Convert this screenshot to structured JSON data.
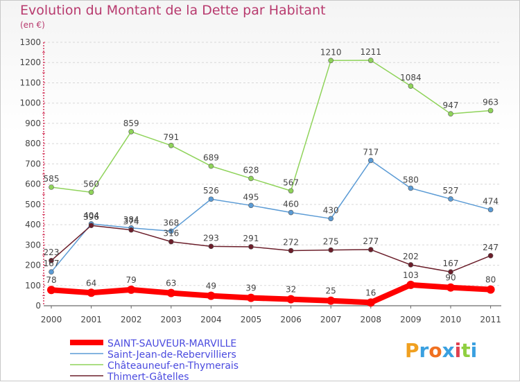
{
  "title": "Evolution du Montant de la Dette par Habitant",
  "subtitle": "(en €)",
  "logo": "Proxiti",
  "colors": {
    "title": "#b83a6e",
    "legend_text": "#4a4adf",
    "axis": "#d4345a",
    "grid": "#d8d8d8"
  },
  "chart_data": {
    "type": "line",
    "x": [
      "2000",
      "2001",
      "2002",
      "2003",
      "2004",
      "2005",
      "2006",
      "2007",
      "2008",
      "2009",
      "2010",
      "2011"
    ],
    "ylim": [
      0,
      1300
    ],
    "yticks": [
      0,
      100,
      200,
      300,
      400,
      500,
      600,
      700,
      800,
      900,
      1000,
      1100,
      1200,
      1300
    ],
    "grid": "horizontal dashed",
    "legend_position": "bottom-left",
    "series": [
      {
        "name": "SAINT-SAUVEUR-MARVILLE",
        "color": "#ff0000",
        "values": [
          78,
          64,
          79,
          63,
          49,
          39,
          32,
          25,
          16,
          103,
          90,
          80
        ]
      },
      {
        "name": "Saint-Jean-de-Rebervilliers",
        "color": "#5b9bd5",
        "values": [
          167,
          404,
          384,
          368,
          526,
          495,
          460,
          430,
          717,
          580,
          527,
          474
        ]
      },
      {
        "name": "Châteauneuf-en-Thymerais",
        "color": "#8fd35a",
        "values": [
          585,
          560,
          859,
          791,
          689,
          628,
          567,
          1210,
          1211,
          1084,
          947,
          963
        ]
      },
      {
        "name": "Thimert-Gâtelles",
        "color": "#6b1e2a",
        "values": [
          223,
          396,
          374,
          316,
          293,
          291,
          272,
          275,
          277,
          202,
          167,
          247
        ]
      }
    ]
  }
}
